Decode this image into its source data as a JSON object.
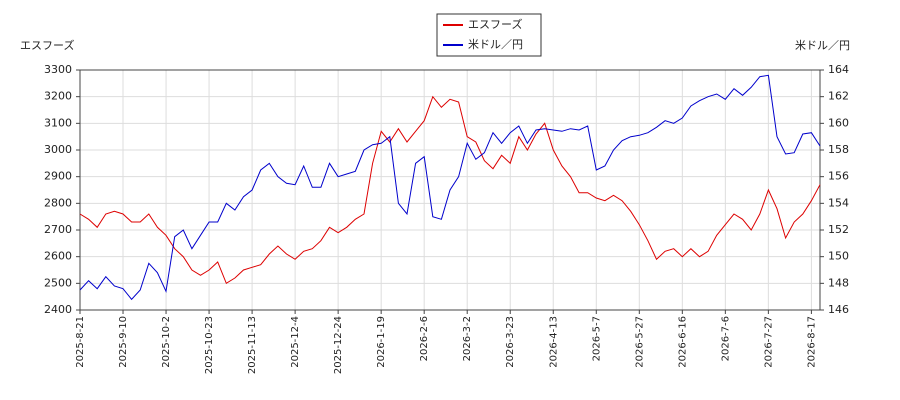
{
  "chart_data": {
    "type": "line",
    "ylabel": "エスフーズ",
    "y2label": "米ドル／円",
    "categories": [
      "2025-8-21",
      null,
      null,
      null,
      null,
      "2025-9-10",
      null,
      null,
      null,
      null,
      "2025-10-2",
      null,
      null,
      null,
      null,
      "2025-10-23",
      null,
      null,
      null,
      null,
      "2025-11-13",
      null,
      null,
      null,
      null,
      "2025-12-4",
      null,
      null,
      null,
      null,
      "2025-12-24",
      null,
      null,
      null,
      null,
      "2026-1-19",
      null,
      null,
      null,
      null,
      "2026-2-6",
      null,
      null,
      null,
      null,
      "2026-3-2",
      null,
      null,
      null,
      null,
      "2026-3-23",
      null,
      null,
      null,
      null,
      "2026-4-13",
      null,
      null,
      null,
      null,
      "2026-5-7",
      null,
      null,
      null,
      null,
      "2026-5-27",
      null,
      null,
      null,
      null,
      "2026-6-16",
      null,
      null,
      null,
      null,
      "2026-7-6",
      null,
      null,
      null,
      null,
      "2026-7-27",
      null,
      null,
      null,
      null,
      "2026-8-17",
      null
    ],
    "series": [
      {
        "name": "エスフーズ",
        "color": "#dd0000",
        "values": [
          2760,
          2740,
          2710,
          2760,
          2770,
          2760,
          2730,
          2730,
          2760,
          2710,
          2680,
          2630,
          2600,
          2550,
          2530,
          2550,
          2580,
          2500,
          2520,
          2550,
          2560,
          2570,
          2610,
          2640,
          2610,
          2590,
          2620,
          2630,
          2660,
          2710,
          2690,
          2710,
          2740,
          2760,
          2950,
          3070,
          3030,
          3080,
          3030,
          3070,
          3110,
          3200,
          3160,
          3190,
          3180,
          3050,
          3030,
          2960,
          2930,
          2980,
          2950,
          3050,
          3000,
          3060,
          3100,
          3000,
          2940,
          2900,
          2840,
          2840,
          2820,
          2810,
          2830,
          2810,
          2770,
          2720,
          2660,
          2590,
          2620,
          2630,
          2600,
          2630,
          2600,
          2620,
          2680,
          2720,
          2760,
          2740,
          2700,
          2760,
          2850,
          2780,
          2670,
          2730,
          2760,
          2810,
          2870
        ]
      },
      {
        "name": "米ドル／円",
        "color": "#0000cc",
        "axis": "y2",
        "values": [
          147.5,
          148.2,
          147.6,
          148.5,
          147.8,
          147.6,
          146.8,
          147.5,
          149.5,
          148.8,
          147.4,
          151.5,
          152,
          150.6,
          151.6,
          152.6,
          152.6,
          154,
          153.5,
          154.5,
          155,
          156.5,
          157,
          156,
          155.5,
          155.4,
          156.8,
          155.2,
          155.2,
          157,
          156,
          156.2,
          156.4,
          158,
          158.4,
          158.5,
          159,
          154,
          153.2,
          157,
          157.5,
          153,
          152.8,
          155,
          156,
          158.5,
          157.3,
          157.8,
          159.3,
          158.5,
          159.3,
          159.8,
          158.5,
          159.5,
          159.6,
          159.5,
          159.4,
          159.6,
          159.5,
          159.8,
          156.5,
          156.8,
          158,
          158.7,
          159,
          159.1,
          159.3,
          159.7,
          160.2,
          160,
          160.4,
          161.3,
          161.7,
          162,
          162.2,
          161.8,
          162.6,
          162.1,
          162.7,
          163.5,
          163.6,
          159,
          157.7,
          157.8,
          159.2,
          159.3,
          158.3
        ]
      }
    ],
    "ylim": [
      2400,
      3300
    ],
    "yticks": [
      2400,
      2500,
      2600,
      2700,
      2800,
      2900,
      3000,
      3100,
      3200,
      3300
    ],
    "y2lim": [
      146,
      164
    ],
    "y2ticks": [
      146,
      148,
      150,
      152,
      154,
      156,
      158,
      160,
      162,
      164
    ],
    "grid": true,
    "legend": "top"
  }
}
